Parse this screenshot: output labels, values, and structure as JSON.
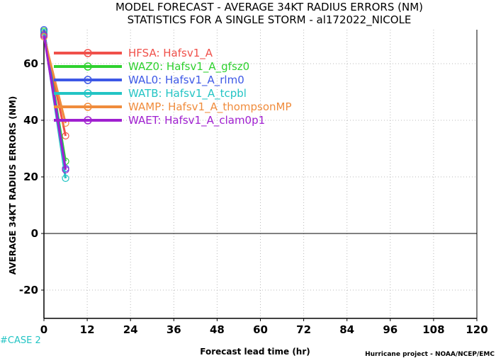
{
  "chart_data": {
    "type": "line",
    "title": "MODEL FORECAST - AVERAGE 34KT RADIUS ERRORS (NM)",
    "subtitle": "STATISTICS FOR A SINGLE STORM - al172022_NICOLE",
    "xlabel": "Forecast lead time (hr)",
    "ylabel": "AVERAGE 34KT RADIUS ERRORS (NM)",
    "xlim": [
      0,
      120
    ],
    "ylim": [
      -30,
      72
    ],
    "x_ticks": [
      "0",
      "12",
      "24",
      "36",
      "48",
      "60",
      "72",
      "84",
      "96",
      "108",
      "120"
    ],
    "y_ticks": [
      "-20",
      "0",
      "20",
      "40",
      "60"
    ],
    "x_tick_values": [
      0,
      12,
      24,
      36,
      48,
      60,
      72,
      84,
      96,
      108,
      120
    ],
    "y_tick_values": [
      -20,
      0,
      20,
      40,
      60
    ],
    "grid": true,
    "zero_line": true,
    "legend_position": "top-left",
    "x": [
      0,
      6
    ],
    "series": [
      {
        "name": "HFSA",
        "label": "HFSA: Hafsv1_A",
        "color": "#f0504a",
        "values": [
          70.5,
          34.5
        ]
      },
      {
        "name": "WAZ0",
        "label": "WAZ0: Hafsv1_A_gfsz0",
        "color": "#2fd12f",
        "values": [
          71.5,
          25.5
        ]
      },
      {
        "name": "WAL0",
        "label": "WAL0: Hafsv1_A_rlm0",
        "color": "#3d58e6",
        "values": [
          72.0,
          23.0
        ]
      },
      {
        "name": "WATB",
        "label": "WATB: Hafsv1_A_tcpbl",
        "color": "#23c4c4",
        "values": [
          71.0,
          19.5
        ]
      },
      {
        "name": "WAMP",
        "label": "WAMP: Hafsv1_A_thompsonMP",
        "color": "#f08c3c",
        "values": [
          69.5,
          39.0
        ]
      },
      {
        "name": "WAET",
        "label": "WAET: Hafsv1_A_clam0p1",
        "color": "#a020d0",
        "values": [
          70.0,
          22.5
        ]
      }
    ]
  },
  "case_label": "#CASE 2",
  "credit": "Hurricane project - NOAA/NCEP/EMC"
}
